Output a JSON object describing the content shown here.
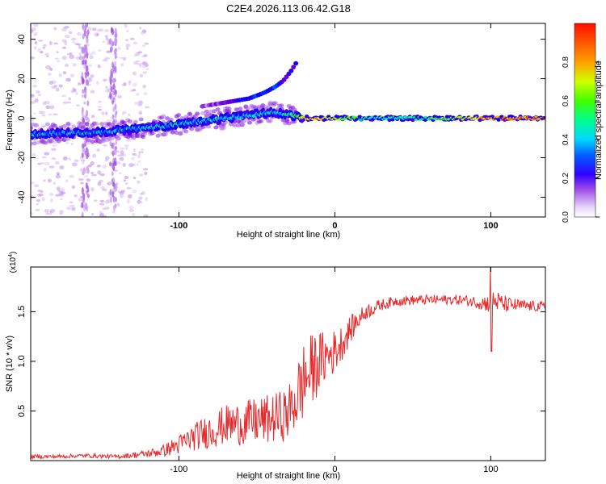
{
  "title": "C2E4.2026.113.06.42.G18",
  "colors": {
    "line": "#e8282a",
    "frame": "#000000",
    "background": "#ffffff"
  },
  "chart_data": [
    {
      "type": "heatmap",
      "id": "spectrogram",
      "xlabel": "Height of straight line (km)",
      "ylabel": "Frequency (Hz)",
      "xlim": [
        -195,
        135
      ],
      "ylim": [
        -50,
        48
      ],
      "xticks": [
        -100,
        0,
        100
      ],
      "yticks": [
        -40,
        -20,
        0,
        20,
        40
      ],
      "colorbar": {
        "label": "Normalized spectral amplitude",
        "range": [
          0,
          1
        ],
        "ticks": [
          0,
          0.2,
          0.4,
          0.6,
          0.8
        ],
        "stops": [
          "#ffffff",
          "#c9a4f0",
          "#7b00d6",
          "#0000ff",
          "#00c8ff",
          "#00ff8a",
          "#4cff00",
          "#f0ff00",
          "#ff9a00",
          "#ff1a00"
        ]
      },
      "ridge": {
        "description": "dominant frequency track",
        "x": [
          -195,
          -150,
          -110,
          -80,
          -60,
          -40,
          -30,
          -20,
          0,
          20,
          60,
          100,
          135
        ],
        "y": [
          -8,
          -7,
          -4,
          -1,
          1,
          3,
          2,
          0,
          0,
          0,
          0,
          0,
          0
        ],
        "amplitude": [
          0.45,
          0.45,
          0.5,
          0.5,
          0.5,
          0.5,
          0.55,
          0.85,
          0.8,
          0.55,
          0.6,
          0.9,
          0.95
        ]
      },
      "harmonic": {
        "x": [
          -85,
          -70,
          -55,
          -45,
          -38,
          -33,
          -28,
          -24
        ],
        "y": [
          6,
          8,
          10,
          13,
          16,
          19,
          24,
          29
        ],
        "amplitude": [
          0.15,
          0.25,
          0.4,
          0.45,
          0.4,
          0.35,
          0.3,
          0.3
        ]
      }
    },
    {
      "type": "line",
      "id": "snr",
      "xlabel": "Height of straight line (km)",
      "ylabel": "SNR (10 * v/v)",
      "scale_label": "(x10",
      "scale_exp": "4",
      "xlim": [
        -195,
        135
      ],
      "ylim": [
        0,
        1.95
      ],
      "xticks": [
        -100,
        0,
        100
      ],
      "yticks": [
        0.5,
        1.0,
        1.5
      ],
      "ytick_labels": [
        "0.5",
        "1.0",
        "1.5"
      ],
      "series": [
        {
          "name": "SNR",
          "x": [
            -195,
            -180,
            -160,
            -140,
            -120,
            -110,
            -100,
            -90,
            -80,
            -70,
            -60,
            -50,
            -40,
            -30,
            -25,
            -20,
            -15,
            -10,
            -5,
            0,
            5,
            10,
            15,
            20,
            30,
            40,
            60,
            80,
            90,
            100,
            101,
            110,
            120,
            135
          ],
          "y": [
            0.04,
            0.04,
            0.05,
            0.04,
            0.07,
            0.1,
            0.16,
            0.24,
            0.3,
            0.36,
            0.37,
            0.4,
            0.42,
            0.47,
            0.62,
            0.8,
            0.9,
            1.0,
            1.05,
            1.1,
            1.2,
            1.32,
            1.42,
            1.5,
            1.57,
            1.61,
            1.62,
            1.62,
            1.6,
            1.58,
            1.62,
            1.57,
            1.56,
            1.55
          ],
          "noise": [
            0.02,
            0.02,
            0.02,
            0.02,
            0.04,
            0.06,
            0.1,
            0.14,
            0.18,
            0.2,
            0.22,
            0.24,
            0.25,
            0.27,
            0.35,
            0.4,
            0.38,
            0.3,
            0.26,
            0.22,
            0.18,
            0.14,
            0.1,
            0.08,
            0.06,
            0.05,
            0.05,
            0.05,
            0.06,
            0.1,
            0.12,
            0.08,
            0.06,
            0.05
          ]
        }
      ]
    }
  ]
}
